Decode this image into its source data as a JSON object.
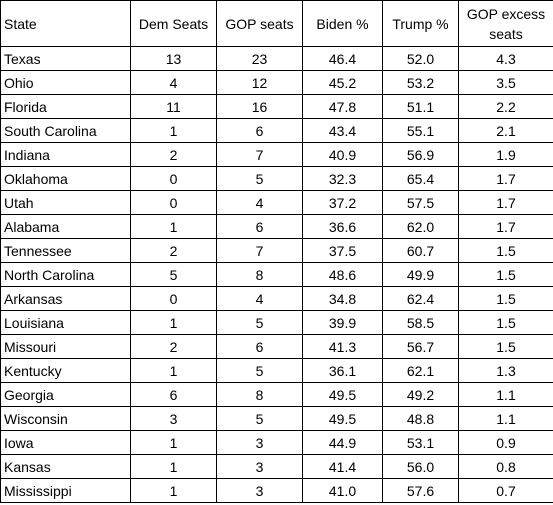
{
  "table": {
    "headers": {
      "state": "State",
      "dem_seats": "Dem Seats",
      "gop_seats": "GOP seats",
      "biden_pct": "Biden %",
      "trump_pct": "Trump %",
      "gop_excess_seats": "GOP excess seats"
    },
    "rows": [
      {
        "state": "Texas",
        "dem": "13",
        "gop": "23",
        "biden": "46.4",
        "trump": "52.0",
        "excess": "4.3"
      },
      {
        "state": "Ohio",
        "dem": "4",
        "gop": "12",
        "biden": "45.2",
        "trump": "53.2",
        "excess": "3.5"
      },
      {
        "state": "Florida",
        "dem": "11",
        "gop": "16",
        "biden": "47.8",
        "trump": "51.1",
        "excess": "2.2"
      },
      {
        "state": "South Carolina",
        "dem": "1",
        "gop": "6",
        "biden": "43.4",
        "trump": "55.1",
        "excess": "2.1"
      },
      {
        "state": "Indiana",
        "dem": "2",
        "gop": "7",
        "biden": "40.9",
        "trump": "56.9",
        "excess": "1.9"
      },
      {
        "state": "Oklahoma",
        "dem": "0",
        "gop": "5",
        "biden": "32.3",
        "trump": "65.4",
        "excess": "1.7"
      },
      {
        "state": "Utah",
        "dem": "0",
        "gop": "4",
        "biden": "37.2",
        "trump": "57.5",
        "excess": "1.7"
      },
      {
        "state": "Alabama",
        "dem": "1",
        "gop": "6",
        "biden": "36.6",
        "trump": "62.0",
        "excess": "1.7"
      },
      {
        "state": "Tennessee",
        "dem": "2",
        "gop": "7",
        "biden": "37.5",
        "trump": "60.7",
        "excess": "1.5"
      },
      {
        "state": "North Carolina",
        "dem": "5",
        "gop": "8",
        "biden": "48.6",
        "trump": "49.9",
        "excess": "1.5"
      },
      {
        "state": "Arkansas",
        "dem": "0",
        "gop": "4",
        "biden": "34.8",
        "trump": "62.4",
        "excess": "1.5"
      },
      {
        "state": "Louisiana",
        "dem": "1",
        "gop": "5",
        "biden": "39.9",
        "trump": "58.5",
        "excess": "1.5"
      },
      {
        "state": "Missouri",
        "dem": "2",
        "gop": "6",
        "biden": "41.3",
        "trump": "56.7",
        "excess": "1.5"
      },
      {
        "state": "Kentucky",
        "dem": "1",
        "gop": "5",
        "biden": "36.1",
        "trump": "62.1",
        "excess": "1.3"
      },
      {
        "state": "Georgia",
        "dem": "6",
        "gop": "8",
        "biden": "49.5",
        "trump": "49.2",
        "excess": "1.1"
      },
      {
        "state": "Wisconsin",
        "dem": "3",
        "gop": "5",
        "biden": "49.5",
        "trump": "48.8",
        "excess": "1.1"
      },
      {
        "state": "Iowa",
        "dem": "1",
        "gop": "3",
        "biden": "44.9",
        "trump": "53.1",
        "excess": "0.9"
      },
      {
        "state": "Kansas",
        "dem": "1",
        "gop": "3",
        "biden": "41.4",
        "trump": "56.0",
        "excess": "0.8"
      },
      {
        "state": "Mississippi",
        "dem": "1",
        "gop": "3",
        "biden": "41.0",
        "trump": "57.6",
        "excess": "0.7"
      }
    ]
  }
}
